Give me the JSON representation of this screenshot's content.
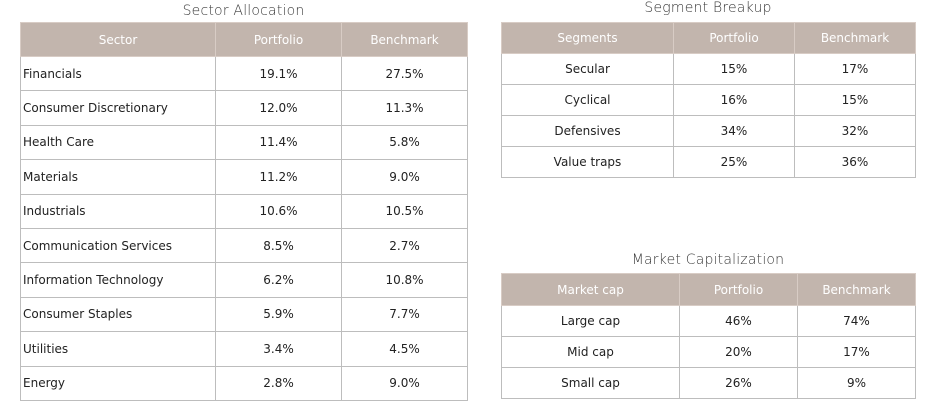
{
  "sector_allocation": {
    "title": "Sector Allocation",
    "headers": [
      "Sector",
      "Portfolio",
      "Benchmark"
    ],
    "rows": [
      [
        "Financials",
        "19.1%",
        "27.5%"
      ],
      [
        "Consumer Discretionary",
        "12.0%",
        "11.3%"
      ],
      [
        "Health Care",
        "11.4%",
        "5.8%"
      ],
      [
        "Materials",
        "11.2%",
        "9.0%"
      ],
      [
        "Industrials",
        "10.6%",
        "10.5%"
      ],
      [
        "Communication Services",
        "8.5%",
        "2.7%"
      ],
      [
        "Information Technology",
        "6.2%",
        "10.8%"
      ],
      [
        "Consumer Staples",
        "5.9%",
        "7.7%"
      ],
      [
        "Utilities",
        "3.4%",
        "4.5%"
      ],
      [
        "Energy",
        "2.8%",
        "9.0%"
      ]
    ]
  },
  "segment_breakup": {
    "title": "Segment Breakup",
    "headers": [
      "Segments",
      "Portfolio",
      "Benchmark"
    ],
    "rows": [
      [
        "Secular",
        "15%",
        "17%"
      ],
      [
        "Cyclical",
        "16%",
        "15%"
      ],
      [
        "Defensives",
        "34%",
        "32%"
      ],
      [
        "Value traps",
        "25%",
        "36%"
      ]
    ]
  },
  "market_capitalization": {
    "title": "Market Capitalization",
    "headers": [
      "Market cap",
      "Portfolio",
      "Benchmark"
    ],
    "rows": [
      [
        "Large cap",
        "46%",
        "74%"
      ],
      [
        "Mid cap",
        "20%",
        "17%"
      ],
      [
        "Small cap",
        "26%",
        "9%"
      ]
    ]
  },
  "colors": {
    "header_bg": "#c2b5ad",
    "header_text": "#ffffff",
    "border": "#bdbdbd"
  }
}
